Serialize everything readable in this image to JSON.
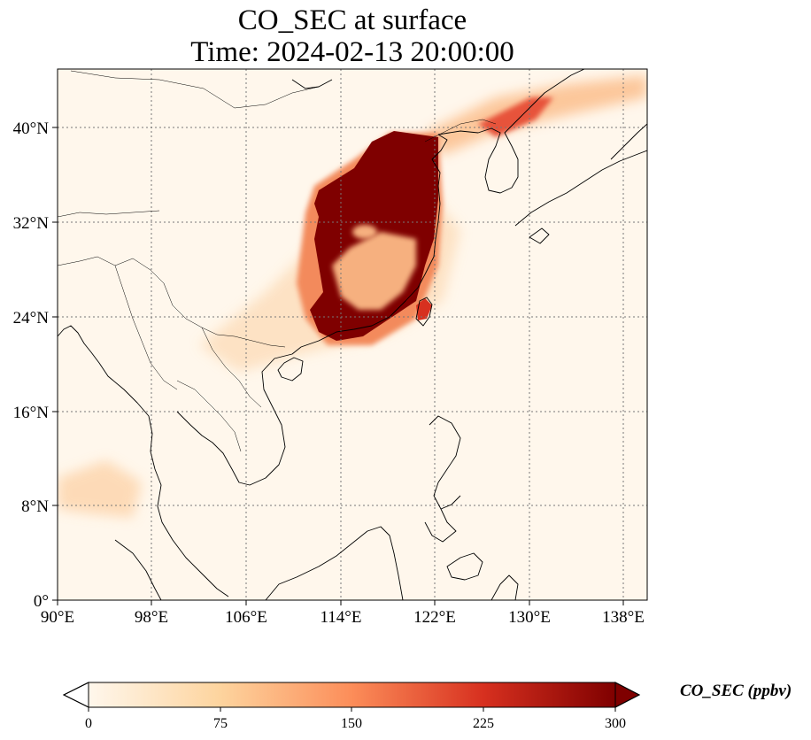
{
  "title": {
    "line1": "CO_SEC at surface",
    "line2": "Time: 2024-02-13 20:00:00"
  },
  "map": {
    "variable": "CO_SEC",
    "projection": "PlateCarree",
    "lon_range": [
      90,
      140
    ],
    "lat_range": [
      0,
      45
    ],
    "gridlines": "dotted",
    "x_ticks": [
      "90°E",
      "98°E",
      "106°E",
      "114°E",
      "122°E",
      "130°E",
      "138°E"
    ],
    "y_ticks": [
      "0°",
      "8°N",
      "16°N",
      "24°N",
      "32°N",
      "40°N"
    ],
    "colormap": "OrRd",
    "ocean_color": "#fff7ec",
    "max_color": "#7f0000"
  },
  "colorbar": {
    "label": "CO_SEC (ppbv)",
    "range": [
      0,
      300
    ],
    "extend": "both",
    "ticks": [
      "0",
      "75",
      "150",
      "225",
      "300"
    ]
  }
}
